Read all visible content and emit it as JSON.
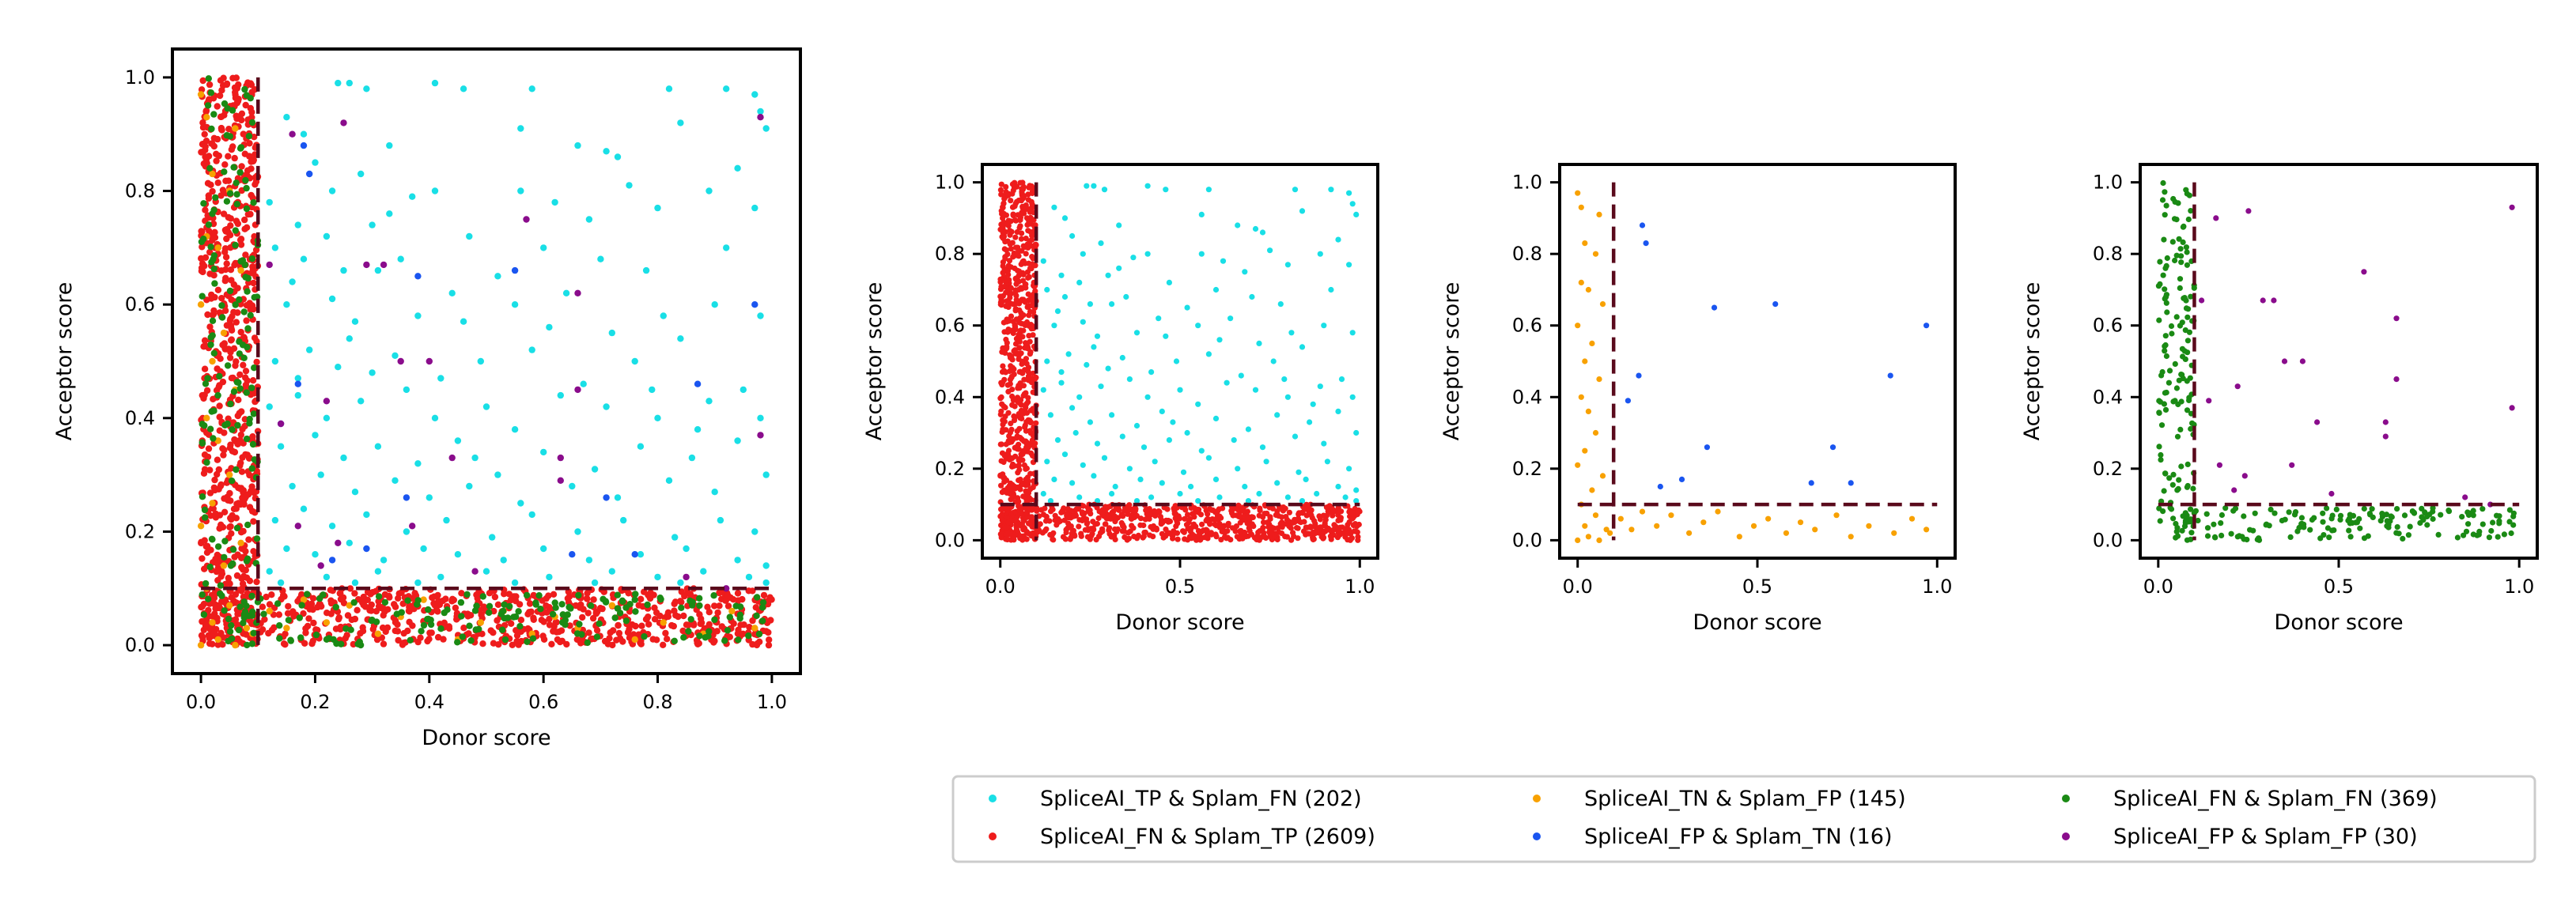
{
  "colors": {
    "tp_fn": "#19dfe6",
    "fn_tp": "#ee1c1c",
    "tn_fp": "#f8a100",
    "fp_tn": "#1a55f0",
    "fn_fn": "#1a8a14",
    "fp_fp": "#8a0c8c",
    "threshold": "#5a0a1c"
  },
  "chart_data": [
    {
      "type": "scatter",
      "panel": "all-classes",
      "xlabel": "Donor score",
      "ylabel": "Acceptor score",
      "xlim": [
        -0.05,
        1.05
      ],
      "ylim": [
        -0.05,
        1.05
      ],
      "xticks": [
        "0.0",
        "0.2",
        "0.4",
        "0.6",
        "0.8",
        "1.0"
      ],
      "yticks": [
        "0.0",
        "0.2",
        "0.4",
        "0.6",
        "0.8",
        "1.0"
      ],
      "threshold": 0.1,
      "series": [
        "tp_fn",
        "fn_tp",
        "tn_fp",
        "fp_tn",
        "fn_fn",
        "fp_fp"
      ]
    },
    {
      "type": "scatter",
      "panel": "splam-tp-fn",
      "xlabel": "Donor score",
      "ylabel": "Acceptor score",
      "xlim": [
        -0.05,
        1.05
      ],
      "ylim": [
        -0.05,
        1.05
      ],
      "xticks": [
        "0.0",
        "0.5",
        "1.0"
      ],
      "yticks": [
        "0.0",
        "0.2",
        "0.4",
        "0.6",
        "0.8",
        "1.0"
      ],
      "threshold": 0.1,
      "series": [
        "tp_fn",
        "fn_tp"
      ]
    },
    {
      "type": "scatter",
      "panel": "splam-fp-tn",
      "xlabel": "Donor score",
      "ylabel": "Acceptor score",
      "xlim": [
        -0.05,
        1.05
      ],
      "ylim": [
        -0.05,
        1.05
      ],
      "xticks": [
        "0.0",
        "0.5",
        "1.0"
      ],
      "yticks": [
        "0.0",
        "0.2",
        "0.4",
        "0.6",
        "0.8",
        "1.0"
      ],
      "threshold": 0.1,
      "series": [
        "tn_fp",
        "fp_tn"
      ]
    },
    {
      "type": "scatter",
      "panel": "splam-fn-fp",
      "xlabel": "Donor score",
      "ylabel": "Acceptor score",
      "xlim": [
        -0.05,
        1.05
      ],
      "ylim": [
        -0.05,
        1.05
      ],
      "xticks": [
        "0.0",
        "0.5",
        "1.0"
      ],
      "yticks": [
        "0.0",
        "0.2",
        "0.4",
        "0.6",
        "0.8",
        "1.0"
      ],
      "threshold": 0.1,
      "series": [
        "fn_fn",
        "fp_fp"
      ]
    }
  ],
  "series": {
    "tp_fn": {
      "name": "SpliceAI_TP & Splam_FN (202)",
      "color": "#19dfe6",
      "points": [
        [
          0.15,
          0.93
        ],
        [
          0.18,
          0.9
        ],
        [
          0.24,
          0.99
        ],
        [
          0.26,
          0.99
        ],
        [
          0.29,
          0.98
        ],
        [
          0.41,
          0.99
        ],
        [
          0.46,
          0.98
        ],
        [
          0.58,
          0.98
        ],
        [
          0.82,
          0.98
        ],
        [
          0.92,
          0.98
        ],
        [
          0.97,
          0.97
        ],
        [
          0.98,
          0.94
        ],
        [
          0.99,
          0.91
        ],
        [
          0.84,
          0.92
        ],
        [
          0.56,
          0.91
        ],
        [
          0.66,
          0.88
        ],
        [
          0.71,
          0.87
        ],
        [
          0.73,
          0.86
        ],
        [
          0.2,
          0.85
        ],
        [
          0.23,
          0.8
        ],
        [
          0.28,
          0.83
        ],
        [
          0.33,
          0.76
        ],
        [
          0.37,
          0.79
        ],
        [
          0.41,
          0.8
        ],
        [
          0.12,
          0.78
        ],
        [
          0.17,
          0.74
        ],
        [
          0.22,
          0.72
        ],
        [
          0.3,
          0.74
        ],
        [
          0.56,
          0.8
        ],
        [
          0.62,
          0.78
        ],
        [
          0.68,
          0.75
        ],
        [
          0.75,
          0.81
        ],
        [
          0.8,
          0.77
        ],
        [
          0.89,
          0.8
        ],
        [
          0.97,
          0.77
        ],
        [
          0.13,
          0.7
        ],
        [
          0.18,
          0.68
        ],
        [
          0.25,
          0.66
        ],
        [
          0.31,
          0.66
        ],
        [
          0.35,
          0.68
        ],
        [
          0.47,
          0.72
        ],
        [
          0.6,
          0.7
        ],
        [
          0.52,
          0.65
        ],
        [
          0.7,
          0.68
        ],
        [
          0.78,
          0.66
        ],
        [
          0.92,
          0.7
        ],
        [
          0.15,
          0.6
        ],
        [
          0.23,
          0.61
        ],
        [
          0.27,
          0.57
        ],
        [
          0.38,
          0.58
        ],
        [
          0.46,
          0.57
        ],
        [
          0.55,
          0.6
        ],
        [
          0.64,
          0.62
        ],
        [
          0.72,
          0.55
        ],
        [
          0.81,
          0.58
        ],
        [
          0.9,
          0.6
        ],
        [
          0.98,
          0.58
        ],
        [
          0.13,
          0.5
        ],
        [
          0.19,
          0.52
        ],
        [
          0.24,
          0.49
        ],
        [
          0.3,
          0.48
        ],
        [
          0.34,
          0.51
        ],
        [
          0.42,
          0.47
        ],
        [
          0.49,
          0.5
        ],
        [
          0.58,
          0.52
        ],
        [
          0.67,
          0.46
        ],
        [
          0.76,
          0.5
        ],
        [
          0.84,
          0.54
        ],
        [
          0.95,
          0.45
        ],
        [
          0.12,
          0.42
        ],
        [
          0.17,
          0.44
        ],
        [
          0.22,
          0.4
        ],
        [
          0.28,
          0.43
        ],
        [
          0.36,
          0.45
        ],
        [
          0.41,
          0.4
        ],
        [
          0.5,
          0.42
        ],
        [
          0.55,
          0.38
        ],
        [
          0.63,
          0.44
        ],
        [
          0.71,
          0.42
        ],
        [
          0.8,
          0.4
        ],
        [
          0.89,
          0.43
        ],
        [
          0.98,
          0.4
        ],
        [
          0.14,
          0.35
        ],
        [
          0.2,
          0.37
        ],
        [
          0.25,
          0.33
        ],
        [
          0.31,
          0.35
        ],
        [
          0.38,
          0.32
        ],
        [
          0.45,
          0.36
        ],
        [
          0.52,
          0.3
        ],
        [
          0.6,
          0.34
        ],
        [
          0.69,
          0.31
        ],
        [
          0.77,
          0.35
        ],
        [
          0.86,
          0.33
        ],
        [
          0.94,
          0.36
        ],
        [
          0.16,
          0.28
        ],
        [
          0.21,
          0.3
        ],
        [
          0.27,
          0.27
        ],
        [
          0.34,
          0.29
        ],
        [
          0.4,
          0.26
        ],
        [
          0.47,
          0.28
        ],
        [
          0.56,
          0.25
        ],
        [
          0.65,
          0.28
        ],
        [
          0.73,
          0.26
        ],
        [
          0.82,
          0.29
        ],
        [
          0.9,
          0.27
        ],
        [
          0.99,
          0.3
        ],
        [
          0.13,
          0.22
        ],
        [
          0.18,
          0.24
        ],
        [
          0.23,
          0.21
        ],
        [
          0.29,
          0.23
        ],
        [
          0.36,
          0.2
        ],
        [
          0.43,
          0.22
        ],
        [
          0.51,
          0.19
        ],
        [
          0.58,
          0.23
        ],
        [
          0.66,
          0.2
        ],
        [
          0.74,
          0.22
        ],
        [
          0.83,
          0.19
        ],
        [
          0.91,
          0.22
        ],
        [
          0.97,
          0.2
        ],
        [
          0.15,
          0.17
        ],
        [
          0.2,
          0.16
        ],
        [
          0.26,
          0.18
        ],
        [
          0.32,
          0.15
        ],
        [
          0.39,
          0.17
        ],
        [
          0.45,
          0.16
        ],
        [
          0.53,
          0.15
        ],
        [
          0.6,
          0.17
        ],
        [
          0.68,
          0.15
        ],
        [
          0.77,
          0.16
        ],
        [
          0.85,
          0.17
        ],
        [
          0.94,
          0.15
        ],
        [
          0.99,
          0.14
        ],
        [
          0.12,
          0.13
        ],
        [
          0.22,
          0.12
        ],
        [
          0.31,
          0.13
        ],
        [
          0.42,
          0.12
        ],
        [
          0.5,
          0.13
        ],
        [
          0.61,
          0.12
        ],
        [
          0.72,
          0.13
        ],
        [
          0.8,
          0.12
        ],
        [
          0.88,
          0.13
        ],
        [
          0.96,
          0.12
        ],
        [
          0.14,
          0.11
        ],
        [
          0.27,
          0.11
        ],
        [
          0.38,
          0.11
        ],
        [
          0.55,
          0.11
        ],
        [
          0.69,
          0.11
        ],
        [
          0.84,
          0.11
        ],
        [
          0.99,
          0.11
        ],
        [
          0.16,
          0.64
        ],
        [
          0.44,
          0.62
        ],
        [
          0.33,
          0.88
        ],
        [
          0.94,
          0.84
        ],
        [
          0.61,
          0.56
        ],
        [
          0.79,
          0.45
        ],
        [
          0.17,
          0.47
        ],
        [
          0.26,
          0.54
        ],
        [
          0.48,
          0.33
        ],
        [
          0.87,
          0.38
        ]
      ]
    },
    "fn_tp": {
      "name": "SpliceAI_FN & Splam_TP (2609)",
      "color": "#ee1c1c",
      "points": []
    },
    "tn_fp": {
      "name": "SpliceAI_TN & Splam_FP (145)",
      "color": "#f8a100",
      "points": [
        [
          0.0,
          0.97
        ],
        [
          0.01,
          0.93
        ],
        [
          0.06,
          0.91
        ],
        [
          0.02,
          0.83
        ],
        [
          0.05,
          0.8
        ],
        [
          0.01,
          0.72
        ],
        [
          0.03,
          0.7
        ],
        [
          0.07,
          0.66
        ],
        [
          0.0,
          0.6
        ],
        [
          0.04,
          0.55
        ],
        [
          0.02,
          0.5
        ],
        [
          0.06,
          0.45
        ],
        [
          0.01,
          0.4
        ],
        [
          0.03,
          0.36
        ],
        [
          0.05,
          0.3
        ],
        [
          0.02,
          0.25
        ],
        [
          0.0,
          0.21
        ],
        [
          0.07,
          0.18
        ],
        [
          0.04,
          0.14
        ],
        [
          0.01,
          0.1
        ],
        [
          0.05,
          0.07
        ],
        [
          0.02,
          0.04
        ],
        [
          0.08,
          0.03
        ],
        [
          0.03,
          0.01
        ],
        [
          0.0,
          0.0
        ],
        [
          0.06,
          0.0
        ],
        [
          0.09,
          0.02
        ],
        [
          0.12,
          0.06
        ],
        [
          0.15,
          0.03
        ],
        [
          0.18,
          0.08
        ],
        [
          0.22,
          0.04
        ],
        [
          0.26,
          0.07
        ],
        [
          0.31,
          0.02
        ],
        [
          0.35,
          0.05
        ],
        [
          0.39,
          0.08
        ],
        [
          0.45,
          0.01
        ],
        [
          0.49,
          0.04
        ],
        [
          0.53,
          0.06
        ],
        [
          0.58,
          0.02
        ],
        [
          0.62,
          0.05
        ],
        [
          0.66,
          0.03
        ],
        [
          0.72,
          0.07
        ],
        [
          0.76,
          0.01
        ],
        [
          0.81,
          0.04
        ],
        [
          0.88,
          0.02
        ],
        [
          0.93,
          0.06
        ],
        [
          0.97,
          0.03
        ]
      ]
    },
    "fp_tn": {
      "name": "SpliceAI_FP & Splam_TN (16)",
      "color": "#1a55f0",
      "points": [
        [
          0.18,
          0.88
        ],
        [
          0.19,
          0.83
        ],
        [
          0.55,
          0.66
        ],
        [
          0.38,
          0.65
        ],
        [
          0.97,
          0.6
        ],
        [
          0.17,
          0.46
        ],
        [
          0.87,
          0.46
        ],
        [
          0.14,
          0.39
        ],
        [
          0.36,
          0.26
        ],
        [
          0.71,
          0.26
        ],
        [
          0.29,
          0.17
        ],
        [
          0.65,
          0.16
        ],
        [
          0.76,
          0.16
        ],
        [
          0.23,
          0.15
        ]
      ]
    },
    "fn_fn": {
      "name": "SpliceAI_FN & Splam_FN (369)",
      "color": "#1a8a14",
      "points": []
    },
    "fp_fp": {
      "name": "SpliceAI_FP & Splam_FP (30)",
      "color": "#8a0c8c",
      "points": [
        [
          0.98,
          0.93
        ],
        [
          0.25,
          0.92
        ],
        [
          0.16,
          0.9
        ],
        [
          0.32,
          0.67
        ],
        [
          0.29,
          0.67
        ],
        [
          0.57,
          0.75
        ],
        [
          0.66,
          0.62
        ],
        [
          0.35,
          0.5
        ],
        [
          0.4,
          0.5
        ],
        [
          0.22,
          0.43
        ],
        [
          0.14,
          0.39
        ],
        [
          0.44,
          0.33
        ],
        [
          0.98,
          0.37
        ],
        [
          0.66,
          0.45
        ],
        [
          0.63,
          0.33
        ],
        [
          0.63,
          0.29
        ],
        [
          0.37,
          0.21
        ],
        [
          0.24,
          0.18
        ],
        [
          0.21,
          0.14
        ],
        [
          0.85,
          0.12
        ],
        [
          0.92,
          0.1
        ],
        [
          0.48,
          0.13
        ],
        [
          0.17,
          0.21
        ],
        [
          0.12,
          0.67
        ]
      ]
    }
  },
  "legend": {
    "entries": [
      "tp_fn",
      "tn_fp",
      "fn_fn",
      "fn_tp",
      "fp_tn",
      "fp_fp"
    ]
  }
}
